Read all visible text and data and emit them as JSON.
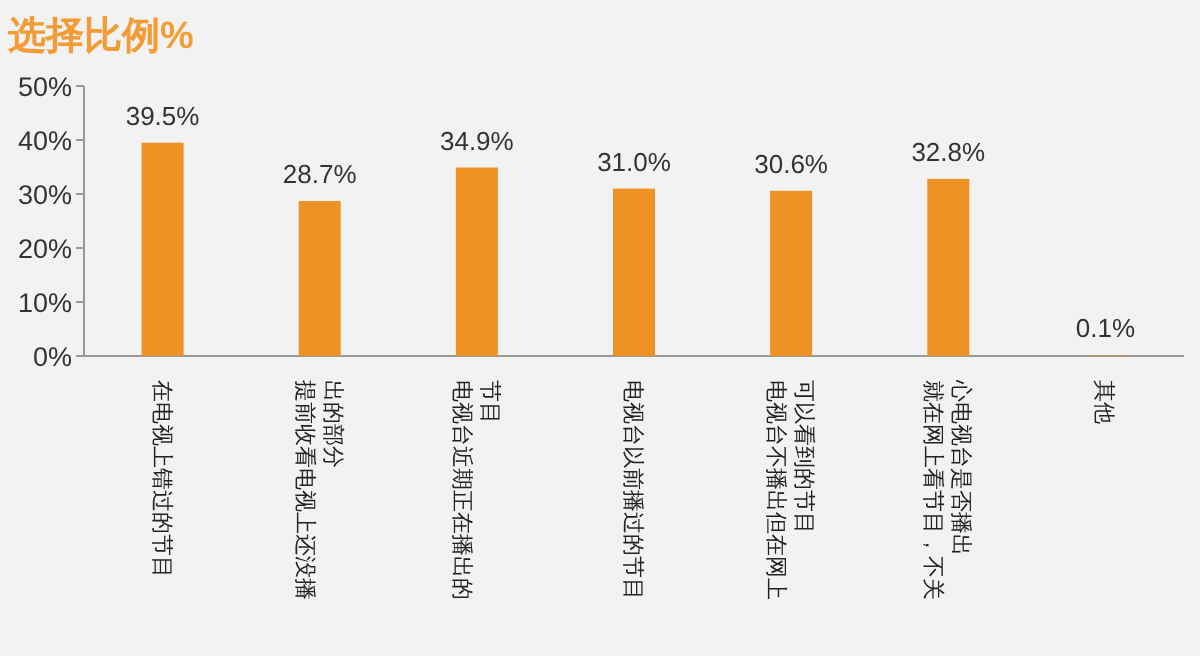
{
  "chart_data": {
    "type": "bar",
    "title": "选择比例%",
    "categories": [
      "在电视上错过的节目",
      "提前收看电视上还没播出的部分",
      "电视台近期正在播出的节目",
      "电视台以前播过的节目",
      "电视台不播出但在网上可以看到的节目",
      "就在网上看节目，不关心电视台是否播出",
      "其他"
    ],
    "values": [
      39.5,
      28.7,
      34.9,
      31.0,
      30.6,
      32.8,
      0.1
    ],
    "value_labels": [
      "39.5%",
      "28.7%",
      "34.9%",
      "31.0%",
      "30.6%",
      "32.8%",
      "0.1%"
    ],
    "color": "#ef9226",
    "ylim": [
      0,
      50
    ],
    "yticks": [
      {
        "value": 0,
        "label": "0%"
      },
      {
        "value": 10,
        "label": "10%"
      },
      {
        "value": 20,
        "label": "20%"
      },
      {
        "value": 30,
        "label": "30%"
      },
      {
        "value": 40,
        "label": "40%"
      },
      {
        "value": 50,
        "label": "50%"
      }
    ]
  }
}
